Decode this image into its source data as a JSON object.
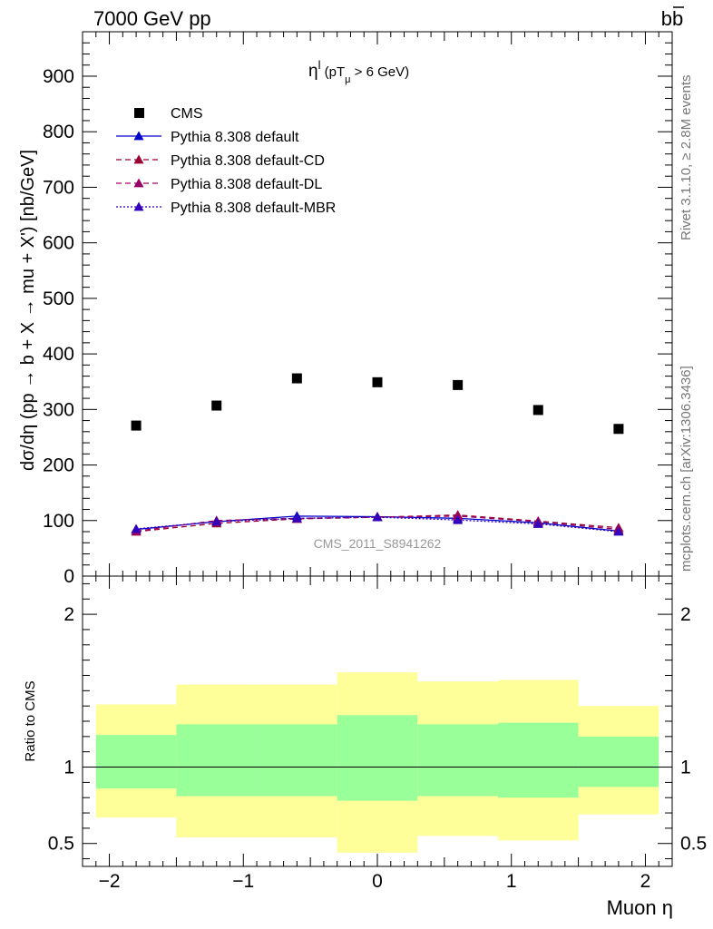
{
  "header": {
    "left": "7000 GeV pp",
    "right": "b",
    "right_bar": "b"
  },
  "side_labels": {
    "rivet": "Rivet 3.1.10, ≥ 2.8M events",
    "mcplots": "mcplots.cern.ch [arXiv:1306.3436]"
  },
  "watermark": "CMS_2011_S8941262",
  "chart_data": {
    "type": "scatter",
    "annotation": {
      "main": "η",
      "sup": "l",
      "rest": " (pT",
      "sub": "μ",
      "tail": " >  6 GeV)"
    },
    "xlabel": "Muon η",
    "ylabel": "dσ/dη (pp → b + X → mu + X') [nb/GeV]",
    "ratio_ylabel": "Ratio to CMS",
    "xlim": [
      -2.2,
      2.2
    ],
    "ylim": [
      0,
      980
    ],
    "ratio_ylim": [
      0.35,
      2.25
    ],
    "x_ticks": [
      -2,
      -1,
      0,
      1,
      2
    ],
    "x_tick_labels": [
      "−2",
      "−1",
      "0",
      "1",
      "2"
    ],
    "y_ticks": [
      0,
      100,
      200,
      300,
      400,
      500,
      600,
      700,
      800,
      900
    ],
    "y_tick_labels": [
      "0",
      "100",
      "200",
      "300",
      "400",
      "500",
      "600",
      "700",
      "800",
      "900"
    ],
    "ratio_ticks": [
      0.5,
      1,
      2
    ],
    "ratio_tick_labels": [
      "0.5",
      "1",
      "2"
    ],
    "bins": [
      [
        -2.1,
        -1.5
      ],
      [
        -1.5,
        -0.9
      ],
      [
        -0.9,
        -0.3
      ],
      [
        -0.3,
        0.3
      ],
      [
        0.3,
        0.9
      ],
      [
        0.9,
        1.5
      ],
      [
        1.5,
        2.1
      ]
    ],
    "x": [
      -1.8,
      -1.2,
      -0.6,
      0.0,
      0.6,
      1.2,
      1.8
    ],
    "series": [
      {
        "name": "CMS",
        "values": [
          271,
          307,
          356,
          349,
          344,
          299,
          265
        ],
        "color": "#000000",
        "style": "marker"
      },
      {
        "name": "Pythia 8.308 default",
        "values": [
          84,
          98,
          108,
          107,
          104,
          96,
          81
        ],
        "color": "#0000cc",
        "style": "solid"
      },
      {
        "name": "Pythia 8.308 default-CD",
        "values": [
          80,
          95,
          103,
          106,
          110,
          99,
          87
        ],
        "color": "#990033",
        "style": "dashed"
      },
      {
        "name": "Pythia 8.308 default-DL",
        "values": [
          81,
          100,
          104,
          106,
          108,
          98,
          84
        ],
        "color": "#990066",
        "style": "dashed"
      },
      {
        "name": "Pythia 8.308 default-MBR",
        "values": [
          85,
          98,
          104,
          106,
          101,
          94,
          80
        ],
        "color": "#3300bb",
        "style": "dotted"
      }
    ],
    "ratio_band_yellow": [
      [
        0.67,
        1.41
      ],
      [
        0.54,
        1.54
      ],
      [
        0.54,
        1.54
      ],
      [
        0.44,
        1.62
      ],
      [
        0.55,
        1.56
      ],
      [
        0.52,
        1.57
      ],
      [
        0.69,
        1.4
      ]
    ],
    "ratio_band_green": [
      [
        0.86,
        1.21
      ],
      [
        0.81,
        1.28
      ],
      [
        0.81,
        1.28
      ],
      [
        0.78,
        1.34
      ],
      [
        0.81,
        1.28
      ],
      [
        0.8,
        1.29
      ],
      [
        0.87,
        1.2
      ]
    ],
    "legend_position": "top-left"
  }
}
